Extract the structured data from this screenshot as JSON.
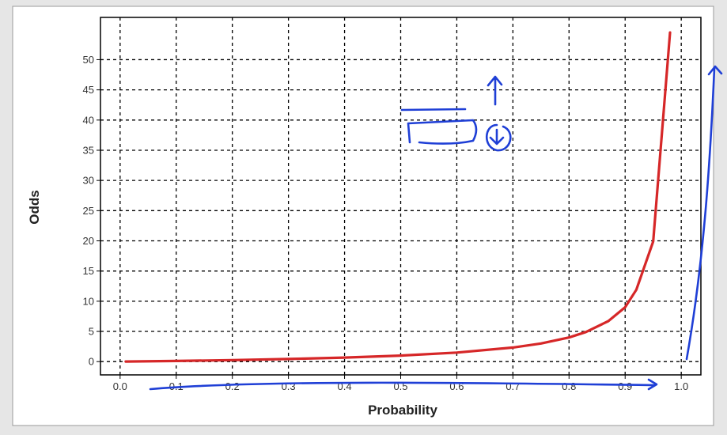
{
  "chart_data": {
    "type": "line",
    "xlabel": "Probability",
    "ylabel": "Odds",
    "xlim": [
      -0.035,
      1.035
    ],
    "ylim": [
      -2.2,
      57
    ],
    "x_ticks": [
      "0.0",
      "0.1",
      "0.2",
      "0.3",
      "0.4",
      "0.5",
      "0.6",
      "0.7",
      "0.8",
      "0.9",
      "1.0"
    ],
    "y_ticks": [
      "0",
      "5",
      "10",
      "15",
      "20",
      "25",
      "30",
      "35",
      "40",
      "45",
      "50"
    ],
    "grid": true,
    "series": [
      {
        "color": "#d62728",
        "x": [
          0.01,
          0.1,
          0.2,
          0.3,
          0.4,
          0.5,
          0.6,
          0.7,
          0.75,
          0.8,
          0.83,
          0.87,
          0.9,
          0.92,
          0.95,
          0.98
        ],
        "y": [
          0.01,
          0.11,
          0.25,
          0.43,
          0.67,
          1.0,
          1.5,
          2.33,
          3.0,
          4.0,
          4.9,
          6.7,
          9.0,
          11.9,
          19.9,
          54.5
        ]
      }
    ]
  },
  "colors": {
    "window_bg": "#e6e6e6",
    "plot_bg": "#ffffff",
    "line": "#d62728",
    "annotation": "#1f3fd6"
  }
}
